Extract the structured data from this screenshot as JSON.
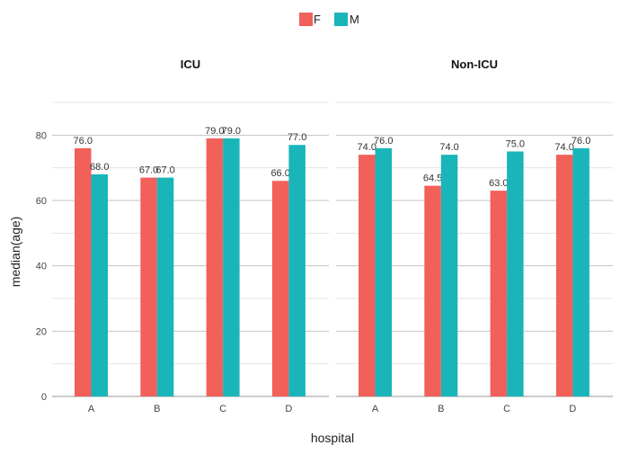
{
  "chart_data": {
    "type": "bar",
    "xlabel": "hospital",
    "ylabel": "median(age)",
    "ylim": [
      0,
      90
    ],
    "yticks": [
      0,
      20,
      40,
      60,
      80
    ],
    "categories": [
      "A",
      "B",
      "C",
      "D"
    ],
    "legend": {
      "placement": "top-center",
      "entries": [
        {
          "name": "F",
          "color": "#F8766D"
        },
        {
          "name": "M",
          "color": "#00BFC4"
        }
      ]
    },
    "colors": {
      "F": "#F2605A",
      "M": "#19B5B9"
    },
    "panels": [
      {
        "title": "ICU",
        "series": [
          {
            "name": "F",
            "values": [
              76.0,
              67.0,
              79.0,
              66.0
            ],
            "labels": [
              "76.0",
              "67.0",
              "79.0",
              "66.0"
            ]
          },
          {
            "name": "M",
            "values": [
              68.0,
              67.0,
              79.0,
              77.0
            ],
            "labels": [
              "68.0",
              "67.0",
              "79.0",
              "77.0"
            ]
          }
        ]
      },
      {
        "title": "Non-ICU",
        "series": [
          {
            "name": "F",
            "values": [
              74.0,
              64.5,
              63.0,
              74.0
            ],
            "labels": [
              "74.0",
              "64.5",
              "63.0",
              "74.0"
            ]
          },
          {
            "name": "M",
            "values": [
              76.0,
              74.0,
              75.0,
              76.0
            ],
            "labels": [
              "76.0",
              "74.0",
              "75.0",
              "76.0"
            ]
          }
        ]
      }
    ]
  }
}
